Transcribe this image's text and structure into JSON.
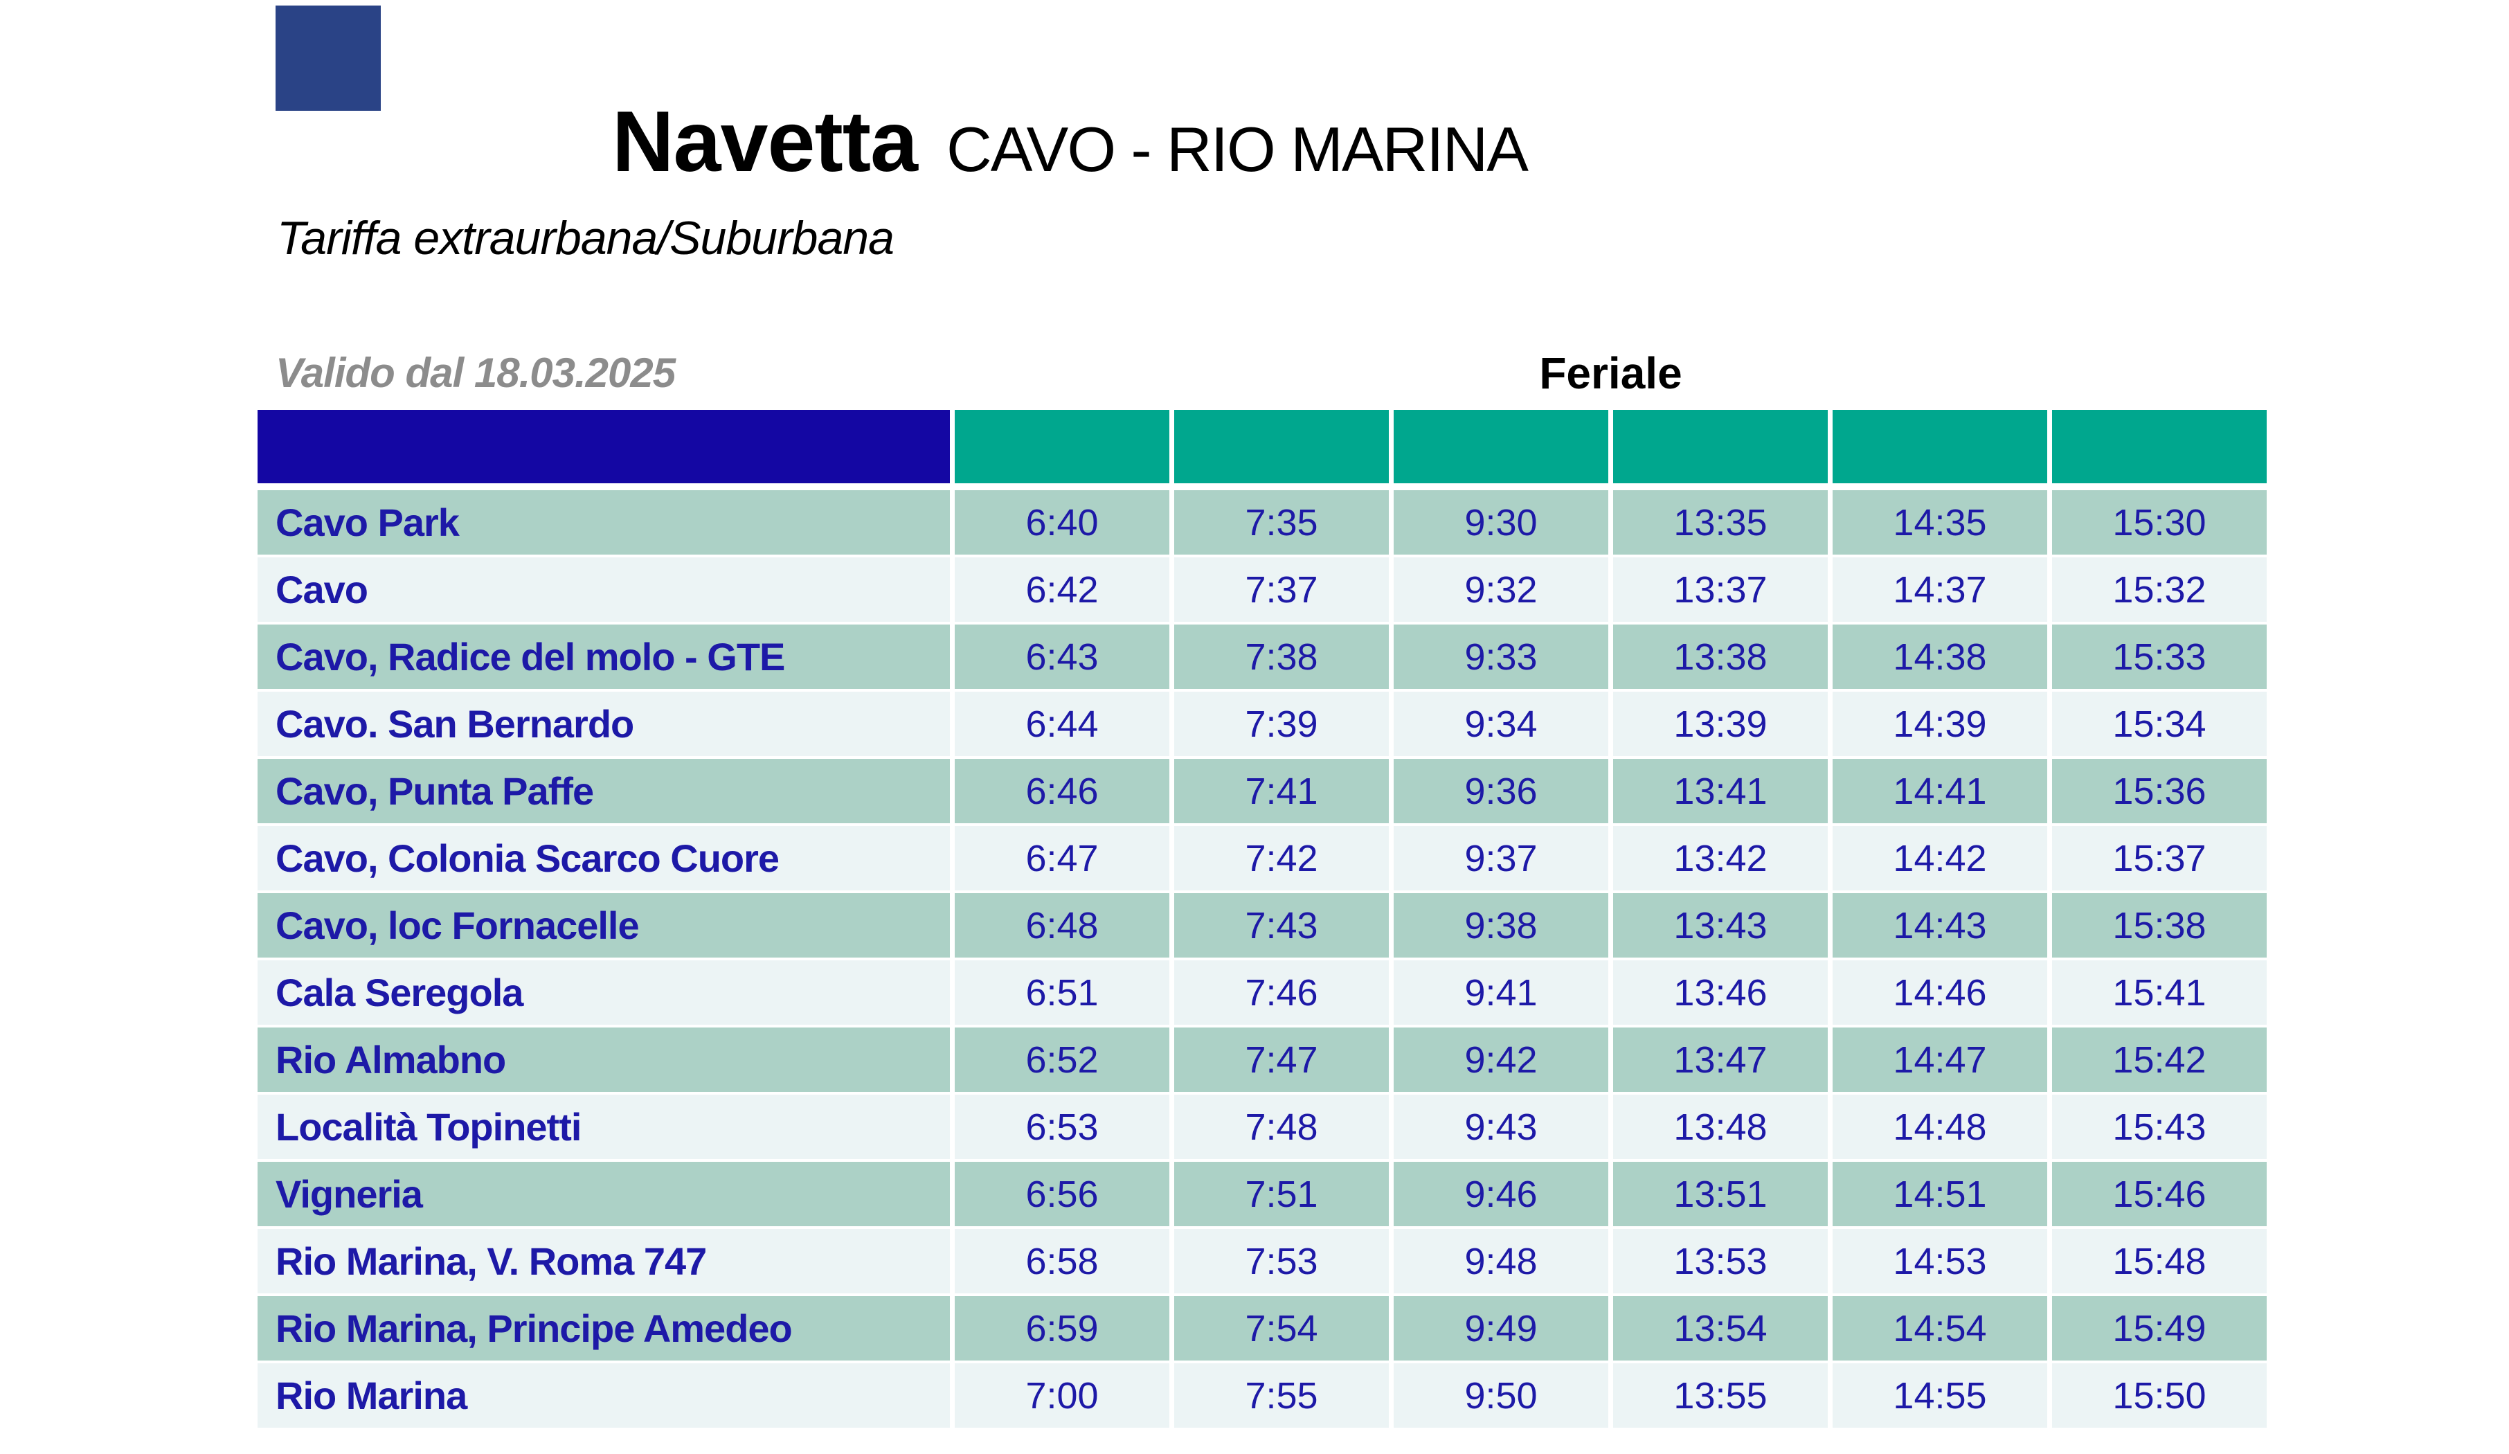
{
  "header": {
    "title_bold": "Navetta",
    "title_route": "CAVO - RIO MARINA",
    "subtitle": "Tariffa extraurbana/Suburbana",
    "valid_from": "Valido dal 18.03.2025",
    "day_type": "Feriale"
  },
  "colors": {
    "stops_header_bg": "#1407a3",
    "time_header_bg": "#00a78e",
    "row_odd_bg": "#acd1c6",
    "row_even_bg": "#ecf4f5",
    "cell_text": "#1d19a7",
    "logo": "#2a4386",
    "valid_from_text": "#8c8c8c",
    "title_text": "#000000"
  },
  "timetable": {
    "time_columns": 6,
    "rows": [
      {
        "stop": "Cavo Park",
        "times": [
          "6:40",
          "7:35",
          "9:30",
          "13:35",
          "14:35",
          "15:30"
        ]
      },
      {
        "stop": "Cavo",
        "times": [
          "6:42",
          "7:37",
          "9:32",
          "13:37",
          "14:37",
          "15:32"
        ]
      },
      {
        "stop": "Cavo, Radice del molo - GTE",
        "times": [
          "6:43",
          "7:38",
          "9:33",
          "13:38",
          "14:38",
          "15:33"
        ]
      },
      {
        "stop": "Cavo. San Bernardo",
        "times": [
          "6:44",
          "7:39",
          "9:34",
          "13:39",
          "14:39",
          "15:34"
        ]
      },
      {
        "stop": "Cavo, Punta Paffe",
        "times": [
          "6:46",
          "7:41",
          "9:36",
          "13:41",
          "14:41",
          "15:36"
        ]
      },
      {
        "stop": "Cavo, Colonia Scarco Cuore",
        "times": [
          "6:47",
          "7:42",
          "9:37",
          "13:42",
          "14:42",
          "15:37"
        ]
      },
      {
        "stop": "Cavo, loc Fornacelle",
        "times": [
          "6:48",
          "7:43",
          "9:38",
          "13:43",
          "14:43",
          "15:38"
        ]
      },
      {
        "stop": "Cala Seregola",
        "times": [
          "6:51",
          "7:46",
          "9:41",
          "13:46",
          "14:46",
          "15:41"
        ]
      },
      {
        "stop": "Rio Almabno",
        "times": [
          "6:52",
          "7:47",
          "9:42",
          "13:47",
          "14:47",
          "15:42"
        ]
      },
      {
        "stop": "Località Topinetti",
        "times": [
          "6:53",
          "7:48",
          "9:43",
          "13:48",
          "14:48",
          "15:43"
        ]
      },
      {
        "stop": "Vigneria",
        "times": [
          "6:56",
          "7:51",
          "9:46",
          "13:51",
          "14:51",
          "15:46"
        ]
      },
      {
        "stop": "Rio Marina, V. Roma 747",
        "times": [
          "6:58",
          "7:53",
          "9:48",
          "13:53",
          "14:53",
          "15:48"
        ]
      },
      {
        "stop": "Rio Marina, Principe Amedeo",
        "times": [
          "6:59",
          "7:54",
          "9:49",
          "13:54",
          "14:54",
          "15:49"
        ]
      },
      {
        "stop": "Rio Marina",
        "times": [
          "7:00",
          "7:55",
          "9:50",
          "13:55",
          "14:55",
          "15:50"
        ]
      }
    ]
  }
}
